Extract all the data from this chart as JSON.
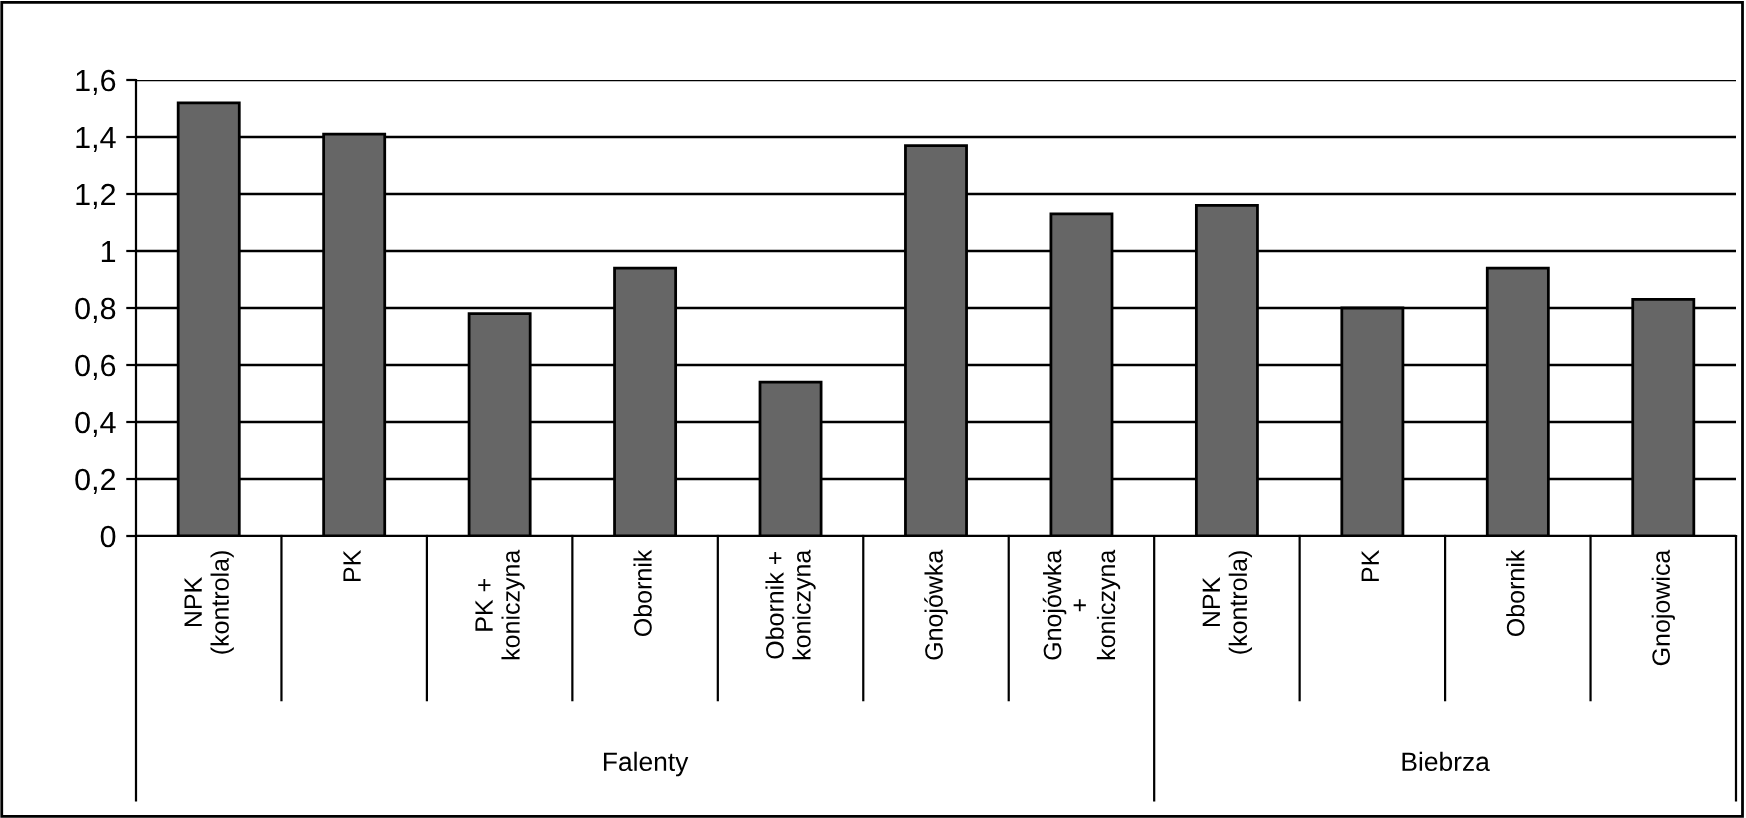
{
  "chart_data": {
    "type": "bar",
    "categories": [
      "NPK\n(kontrola)",
      "PK",
      "PK +\nkoniczyna",
      "Obornik",
      "Obornik +\nkoniczyna",
      "Gnojówka",
      "Gnojówka\n+\nkoniczyna",
      "NPK\n(kontrola)",
      "PK",
      "Obornik",
      "Gnojowica"
    ],
    "values": [
      1.52,
      1.41,
      0.78,
      0.94,
      0.54,
      1.37,
      1.13,
      1.16,
      0.8,
      0.94,
      0.83
    ],
    "color": "#666666",
    "ylim": [
      0,
      1.6
    ],
    "yticks": [
      0,
      {
        "value": 0.2,
        "label": "0,2"
      },
      {
        "value": 0.4,
        "label": "0,4"
      },
      {
        "value": 0.6,
        "label": "0,6"
      },
      {
        "value": 0.8,
        "label": "0,8"
      },
      1,
      {
        "value": 1.2,
        "label": "1,2"
      },
      {
        "value": 1.4,
        "label": "1,4"
      },
      {
        "value": 1.6,
        "label": "1,6"
      }
    ],
    "grid": "y",
    "annotations": [
      "Falenty",
      "Biebrza"
    ]
  }
}
